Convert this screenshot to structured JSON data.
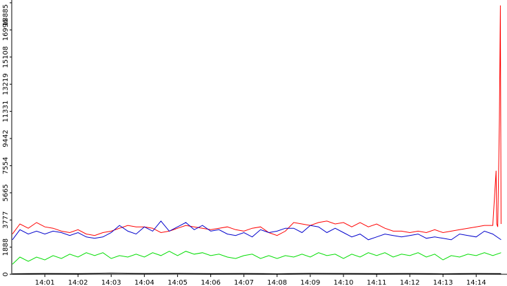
{
  "chart_data": {
    "type": "line",
    "title": "",
    "xlabel": "",
    "ylabel": "",
    "grid": false,
    "legend": "none",
    "x_tick_labels": [
      "14:01",
      "14:02",
      "14:03",
      "14:04",
      "14:05",
      "14:06",
      "14:07",
      "14:08",
      "14:09",
      "14:10",
      "14:11",
      "14:12",
      "14:13",
      "14:14"
    ],
    "y_tick_labels": [
      "0",
      "1888",
      "3777",
      "5665",
      "7554",
      "9442",
      "11331",
      "13219",
      "15108",
      "16996",
      "18885"
    ],
    "x_range_minutes": [
      0,
      14.75
    ],
    "ylim": [
      0,
      18885
    ],
    "series": [
      {
        "color": "#ff0000",
        "x": [
          0,
          0.25,
          0.5,
          0.75,
          1,
          1.25,
          1.5,
          1.75,
          2,
          2.25,
          2.5,
          2.75,
          3,
          3.25,
          3.5,
          3.75,
          4,
          4.25,
          4.5,
          4.75,
          5,
          5.25,
          5.5,
          5.75,
          6,
          6.25,
          6.5,
          6.75,
          7,
          7.25,
          7.5,
          7.75,
          8,
          8.25,
          8.5,
          8.75,
          9,
          9.25,
          9.5,
          9.75,
          10,
          10.25,
          10.5,
          10.75,
          11,
          11.25,
          11.5,
          11.75,
          12,
          12.25,
          12.5,
          12.75,
          13,
          13.25,
          13.5,
          13.75,
          14,
          14.25,
          14.5,
          14.6,
          14.62,
          14.65,
          14.7,
          14.73,
          14.75
        ],
        "values": [
          2800,
          3500,
          3200,
          3600,
          3300,
          3200,
          3000,
          2900,
          3100,
          2800,
          2700,
          2900,
          3000,
          3200,
          3400,
          3300,
          3300,
          3200,
          2900,
          3000,
          3200,
          3400,
          3300,
          3200,
          3100,
          3200,
          3300,
          3100,
          3000,
          3200,
          3300,
          2900,
          2700,
          3000,
          3600,
          3500,
          3400,
          3600,
          3700,
          3500,
          3600,
          3300,
          3600,
          3300,
          3500,
          3200,
          3000,
          3000,
          2900,
          3000,
          2900,
          3100,
          2900,
          3000,
          3100,
          3200,
          3300,
          3400,
          3400,
          7200,
          3500,
          3300,
          10800,
          18700,
          3500
        ]
      },
      {
        "color": "#0000cc",
        "x": [
          0,
          0.25,
          0.5,
          0.75,
          1,
          1.25,
          1.5,
          1.75,
          2,
          2.25,
          2.5,
          2.75,
          3,
          3.25,
          3.5,
          3.75,
          4,
          4.25,
          4.5,
          4.75,
          5,
          5.25,
          5.5,
          5.75,
          6,
          6.25,
          6.5,
          6.75,
          7,
          7.25,
          7.5,
          7.75,
          8,
          8.25,
          8.5,
          8.75,
          9,
          9.25,
          9.5,
          9.75,
          10,
          10.25,
          10.5,
          10.75,
          11,
          11.25,
          11.5,
          11.75,
          12,
          12.25,
          12.5,
          12.75,
          13,
          13.25,
          13.5,
          13.75,
          14,
          14.25,
          14.5,
          14.75
        ],
        "values": [
          2400,
          3100,
          2800,
          3000,
          2800,
          3000,
          2900,
          2700,
          2900,
          2600,
          2500,
          2600,
          2900,
          3400,
          3000,
          2800,
          3300,
          3000,
          3700,
          3000,
          3300,
          3600,
          3100,
          3400,
          3000,
          3100,
          2800,
          2700,
          2900,
          2600,
          3100,
          2900,
          3000,
          3200,
          3200,
          2900,
          3400,
          3300,
          2900,
          3200,
          2900,
          2600,
          2800,
          2400,
          2600,
          2800,
          2700,
          2600,
          2700,
          2800,
          2500,
          2600,
          2500,
          2400,
          2800,
          2700,
          2600,
          3000,
          2800,
          2400
        ]
      },
      {
        "color": "#00dd00",
        "x": [
          0,
          0.25,
          0.5,
          0.75,
          1,
          1.25,
          1.5,
          1.75,
          2,
          2.25,
          2.5,
          2.75,
          3,
          3.25,
          3.5,
          3.75,
          4,
          4.25,
          4.5,
          4.75,
          5,
          5.25,
          5.5,
          5.75,
          6,
          6.25,
          6.5,
          6.75,
          7,
          7.25,
          7.5,
          7.75,
          8,
          8.25,
          8.5,
          8.75,
          9,
          9.25,
          9.5,
          9.75,
          10,
          10.25,
          10.5,
          10.75,
          11,
          11.25,
          11.5,
          11.75,
          12,
          12.25,
          12.5,
          12.75,
          13,
          13.25,
          13.5,
          13.75,
          14,
          14.25,
          14.5,
          14.75
        ],
        "values": [
          700,
          1200,
          900,
          1200,
          1000,
          1300,
          1100,
          1400,
          1200,
          1500,
          1300,
          1500,
          1100,
          1300,
          1200,
          1400,
          1200,
          1500,
          1300,
          1600,
          1300,
          1600,
          1400,
          1500,
          1300,
          1400,
          1200,
          1100,
          1300,
          1400,
          1100,
          1300,
          1100,
          1300,
          1200,
          1400,
          1200,
          1500,
          1300,
          1400,
          1100,
          1400,
          1200,
          1500,
          1300,
          1500,
          1200,
          1400,
          1300,
          1500,
          1200,
          1400,
          1000,
          1300,
          1200,
          1400,
          1300,
          1500,
          1300,
          1500
        ]
      },
      {
        "color": "#000000",
        "x": [
          0,
          1,
          2,
          3,
          4,
          5,
          6,
          7,
          8,
          9,
          10,
          11,
          12,
          13,
          14,
          14.75
        ],
        "values": [
          40,
          60,
          50,
          80,
          60,
          70,
          50,
          60,
          40,
          70,
          60,
          50,
          60,
          40,
          60,
          50
        ]
      }
    ]
  }
}
